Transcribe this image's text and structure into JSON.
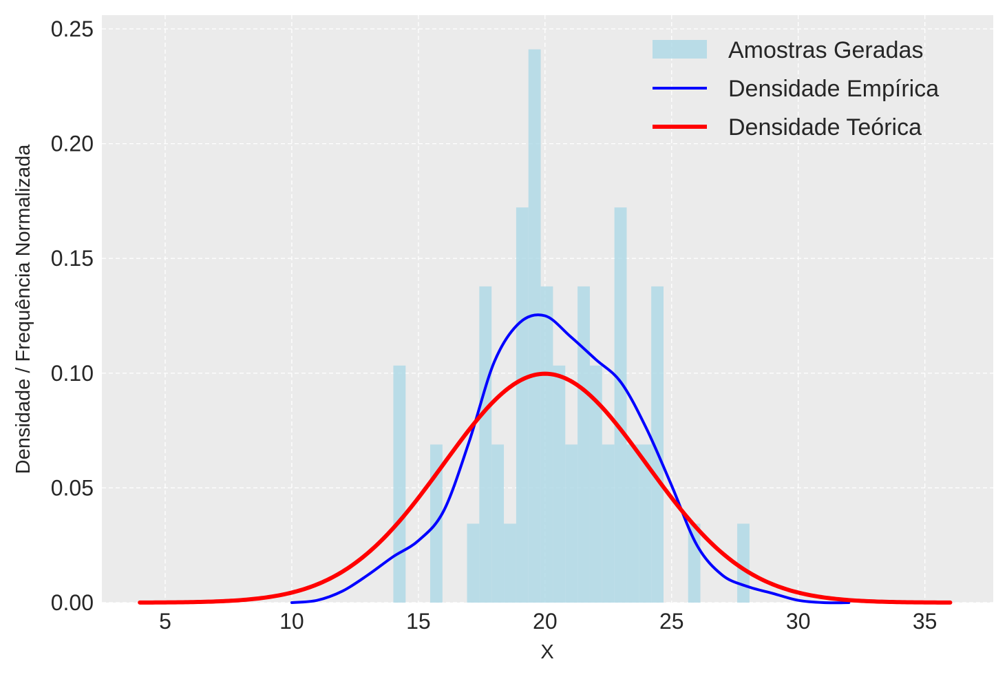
{
  "chart_data": {
    "type": "histogram+line",
    "title": "",
    "xlabel": "X",
    "ylabel": "Densidade / Frequência Normalizada",
    "xlim": [
      2.5,
      37.7
    ],
    "ylim": [
      0,
      0.256
    ],
    "xticks": [
      5,
      10,
      15,
      20,
      25,
      30,
      35
    ],
    "yticks": [
      0.0,
      0.05,
      0.1,
      0.15,
      0.2,
      0.25
    ],
    "xtick_labels": [
      "5",
      "10",
      "15",
      "20",
      "25",
      "30",
      "35"
    ],
    "ytick_labels": [
      "0.00",
      "0.05",
      "0.10",
      "0.15",
      "0.20",
      "0.25"
    ],
    "grid": true,
    "legend_position": "top-right",
    "legend": [
      "Amostras Geradas",
      "Densidade Empírica",
      "Densidade Teórica"
    ],
    "colors": {
      "background": "#ebebeb",
      "grid": "#ffffff",
      "histogram": "#add8e6",
      "empirical": "#0000ff",
      "theoretical": "#ff0000"
    },
    "histogram": {
      "name": "Amostras Geradas",
      "bin_edges": [
        14.01,
        14.495,
        14.98,
        15.465,
        15.95,
        16.435,
        16.92,
        17.405,
        17.89,
        18.375,
        18.86,
        19.345,
        19.83,
        20.315,
        20.8,
        21.285,
        21.77,
        22.255,
        22.74,
        23.225,
        23.71,
        24.195,
        24.68,
        25.165,
        25.65,
        26.135,
        26.62,
        27.105,
        27.59,
        28.075,
        28.56
      ],
      "values": [
        0.1033,
        0,
        0,
        0.0689,
        0,
        0,
        0.0344,
        0.1378,
        0.0689,
        0.0344,
        0.1722,
        0.2411,
        0.1378,
        0.1033,
        0.0689,
        0.1378,
        0.1033,
        0.0689,
        0.1722,
        0.0689,
        0.0689,
        0.1378,
        0,
        0,
        0.0344,
        0,
        0,
        0,
        0.0344,
        0
      ]
    },
    "series": [
      {
        "name": "Densidade Empírica",
        "x": [
          10,
          11,
          12,
          13,
          14,
          15,
          16,
          17,
          18,
          19,
          20,
          21,
          22,
          23,
          24,
          25,
          26,
          27,
          28,
          29,
          30,
          31,
          32
        ],
        "y": [
          0.0,
          0.001,
          0.005,
          0.012,
          0.02,
          0.027,
          0.04,
          0.07,
          0.105,
          0.122,
          0.125,
          0.116,
          0.106,
          0.096,
          0.076,
          0.051,
          0.025,
          0.012,
          0.007,
          0.004,
          0.001,
          0.0,
          0.0
        ]
      },
      {
        "name": "Densidade Teórica",
        "mean": 20,
        "std": 4,
        "x_range": [
          4,
          36
        ]
      }
    ]
  }
}
